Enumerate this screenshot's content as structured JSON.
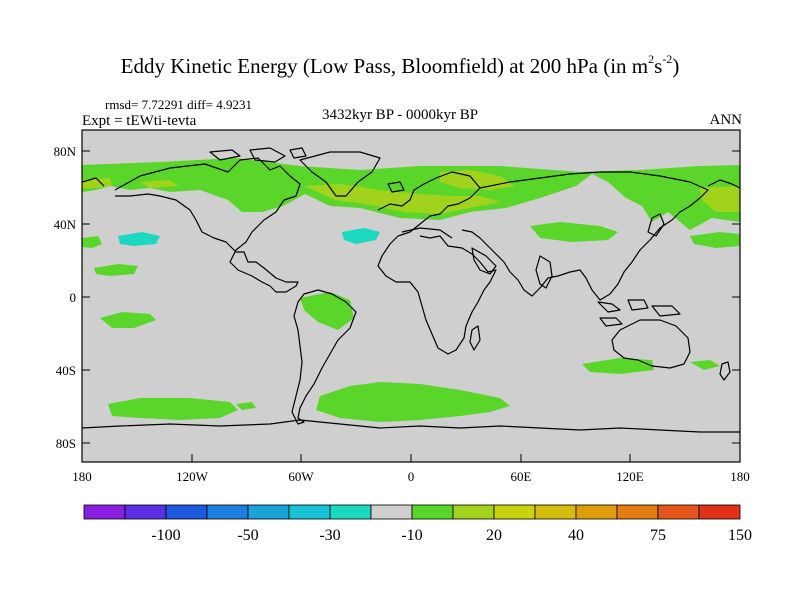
{
  "title": {
    "main": "Eddy Kinetic Energy (Low Pass, Bloomfield) at 200 hPa (in m",
    "sup1": "2",
    "mid": "s",
    "sup2": "-2",
    "end": ")"
  },
  "stats": "rmsd= 7.72291 diff= 4.9231",
  "expt": "Expt = tEWti-tevta",
  "period": "3432kyr BP - 0000kyr BP",
  "season": "ANN",
  "lat_ticks": [
    "80N",
    "40N",
    "0",
    "40S",
    "80S"
  ],
  "lon_ticks": [
    "180",
    "120W",
    "60W",
    "0",
    "60E",
    "120E",
    "180"
  ],
  "colorbar": {
    "colors": [
      "#8a1fe0",
      "#5a2fe6",
      "#1e58dc",
      "#1e7de0",
      "#19a3d8",
      "#17c3d4",
      "#1ad9c0",
      "#cfcfcf",
      "#5ad62a",
      "#a2d31c",
      "#c9d20e",
      "#d6bd0a",
      "#dd9d0c",
      "#e37a12",
      "#e5561a",
      "#e0301c"
    ],
    "labels": [
      "-100",
      "-50",
      "-30",
      "-10",
      "20",
      "40",
      "75",
      "150"
    ]
  },
  "field_colors": {
    "ocean_land_base": "#cfcfcf",
    "green": "#5ad62a",
    "yellowgreen": "#a2d31c",
    "cyan": "#1ad9c0"
  }
}
